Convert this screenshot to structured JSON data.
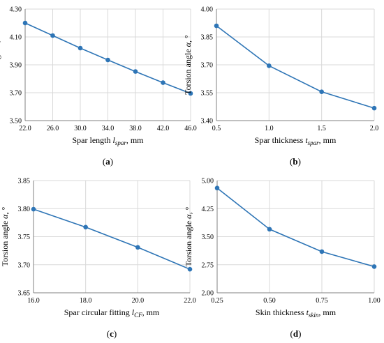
{
  "chart_data": [
    {
      "type": "line",
      "panel_label": "(a)",
      "ylabel_main": "Torsion angle ",
      "ylabel_sym": "α",
      "ylabel_unit": ", °",
      "xlabel_main": "Spar length  ",
      "xlabel_sym": "l",
      "xlabel_sub": "spar",
      "xlabel_unit": ", mm",
      "xlim": [
        22.0,
        46.0
      ],
      "ylim": [
        3.5,
        4.3
      ],
      "xticks": [
        "22.0",
        "26.0",
        "30.0",
        "34.0",
        "38.0",
        "42.0",
        "46.0"
      ],
      "yticks": [
        "3.50",
        "3.70",
        "3.90",
        "4.10",
        "4.30"
      ],
      "x": [
        22,
        26,
        30,
        34,
        38,
        42,
        46
      ],
      "y": [
        4.2,
        4.11,
        4.02,
        3.935,
        3.852,
        3.772,
        3.695
      ],
      "color": "#2e75b6"
    },
    {
      "type": "line",
      "panel_label": "(b)",
      "ylabel_main": "Torsion angle ",
      "ylabel_sym": "α",
      "ylabel_unit": ", °",
      "xlabel_main": "Spar  thickness  ",
      "xlabel_sym": "t",
      "xlabel_sub": "spar",
      "xlabel_unit": ", mm",
      "xlim": [
        0.5,
        2.0
      ],
      "ylim": [
        3.4,
        4.0
      ],
      "xticks": [
        "0.5",
        "1.0",
        "1.5",
        "2.0"
      ],
      "yticks": [
        "3.40",
        "3.55",
        "3.70",
        "3.85",
        "4.00"
      ],
      "x": [
        0.5,
        1.0,
        1.5,
        2.0
      ],
      "y": [
        3.91,
        3.695,
        3.555,
        3.467
      ],
      "color": "#2e75b6"
    },
    {
      "type": "line",
      "panel_label": "(c)",
      "ylabel_main": "Torsion angle ",
      "ylabel_sym": "α",
      "ylabel_unit": ", °",
      "xlabel_main": "Spar circular fitting  ",
      "xlabel_sym": "l",
      "xlabel_sub": "CF",
      "xlabel_unit": ", mm",
      "xlim": [
        16.0,
        22.0
      ],
      "ylim": [
        3.65,
        3.85
      ],
      "xticks": [
        "16.0",
        "18.0",
        "20.0",
        "22.0"
      ],
      "yticks": [
        "3.65",
        "3.70",
        "3.75",
        "3.80",
        "3.85"
      ],
      "x": [
        16,
        18,
        20,
        22
      ],
      "y": [
        3.799,
        3.767,
        3.731,
        3.692
      ],
      "color": "#2e75b6"
    },
    {
      "type": "line",
      "panel_label": "(d)",
      "ylabel_main": "Torsion angle ",
      "ylabel_sym": "α",
      "ylabel_unit": ", °",
      "xlabel_main": "Skin thickness  ",
      "xlabel_sym": "t",
      "xlabel_sub": "skin",
      "xlabel_unit": ", mm",
      "xlim": [
        0.25,
        1.0
      ],
      "ylim": [
        2.0,
        5.0
      ],
      "xticks": [
        "0.25",
        "0.50",
        "0.75",
        "1.00"
      ],
      "yticks": [
        "2.00",
        "2.75",
        "3.50",
        "4.25",
        "5.00"
      ],
      "x": [
        0.25,
        0.5,
        0.75,
        1.0
      ],
      "y": [
        4.8,
        3.7,
        3.1,
        2.7
      ],
      "color": "#2e75b6"
    }
  ]
}
